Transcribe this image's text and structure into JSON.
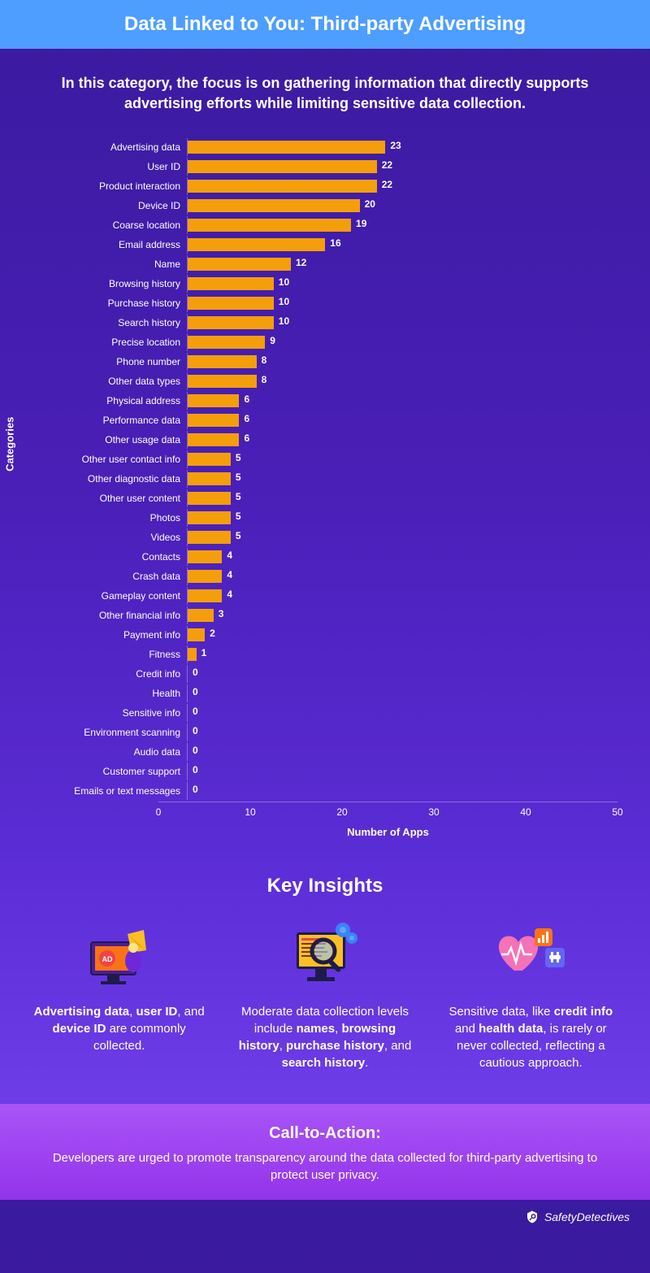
{
  "header": {
    "title": "Data Linked to You: Third-party Advertising"
  },
  "intro": "In this category, the focus is on gathering information that directly supports advertising efforts while limiting sensitive data collection.",
  "chart": {
    "type": "horizontal_bar",
    "y_axis_label": "Categories",
    "x_axis_label": "Number of Apps",
    "x_max": 50,
    "x_ticks": [
      0,
      10,
      20,
      30,
      40,
      50
    ],
    "bar_color": "#f59e0b",
    "value_color": "#ffffff",
    "label_fontsize": 12,
    "value_fontsize": 12,
    "items": [
      {
        "label": "Advertising data",
        "value": 23
      },
      {
        "label": "User ID",
        "value": 22
      },
      {
        "label": "Product interaction",
        "value": 22
      },
      {
        "label": "Device ID",
        "value": 20
      },
      {
        "label": "Coarse location",
        "value": 19
      },
      {
        "label": "Email address",
        "value": 16
      },
      {
        "label": "Name",
        "value": 12
      },
      {
        "label": "Browsing history",
        "value": 10
      },
      {
        "label": "Purchase history",
        "value": 10
      },
      {
        "label": "Search history",
        "value": 10
      },
      {
        "label": "Precise location",
        "value": 9
      },
      {
        "label": "Phone number",
        "value": 8
      },
      {
        "label": "Other data types",
        "value": 8
      },
      {
        "label": "Physical address",
        "value": 6
      },
      {
        "label": "Performance data",
        "value": 6
      },
      {
        "label": "Other usage data",
        "value": 6
      },
      {
        "label": "Other user contact info",
        "value": 5
      },
      {
        "label": "Other diagnostic data",
        "value": 5
      },
      {
        "label": "Other user content",
        "value": 5
      },
      {
        "label": "Photos",
        "value": 5
      },
      {
        "label": "Videos",
        "value": 5
      },
      {
        "label": "Contacts",
        "value": 4
      },
      {
        "label": "Crash data",
        "value": 4
      },
      {
        "label": "Gameplay content",
        "value": 4
      },
      {
        "label": "Other financial info",
        "value": 3
      },
      {
        "label": "Payment info",
        "value": 2
      },
      {
        "label": "Fitness",
        "value": 1
      },
      {
        "label": "Credit info",
        "value": 0
      },
      {
        "label": "Health",
        "value": 0
      },
      {
        "label": "Sensitive info",
        "value": 0
      },
      {
        "label": "Environment scanning",
        "value": 0
      },
      {
        "label": "Audio data",
        "value": 0
      },
      {
        "label": "Customer support",
        "value": 0
      },
      {
        "label": "Emails or text messages",
        "value": 0
      }
    ]
  },
  "insights": {
    "title": "Key Insights",
    "cards": [
      {
        "html": "<b>Advertising data</b>, <b>user ID</b>, and <b>device ID</b> are commonly collected."
      },
      {
        "html": "Moderate data collection levels include <b>names</b>, <b>browsing history</b>, <b>purchase history</b>, and <b>search history</b>."
      },
      {
        "html": "Sensitive data, like <b>credit info</b> and <b>health data</b>, is rarely or never collected, reflecting a cautious approach."
      }
    ]
  },
  "cta": {
    "title": "Call-to-Action:",
    "text": "Developers are urged to promote transparency around the data collected for third-party advertising to protect user privacy."
  },
  "footer": {
    "brand": "SafetyDetectives"
  }
}
